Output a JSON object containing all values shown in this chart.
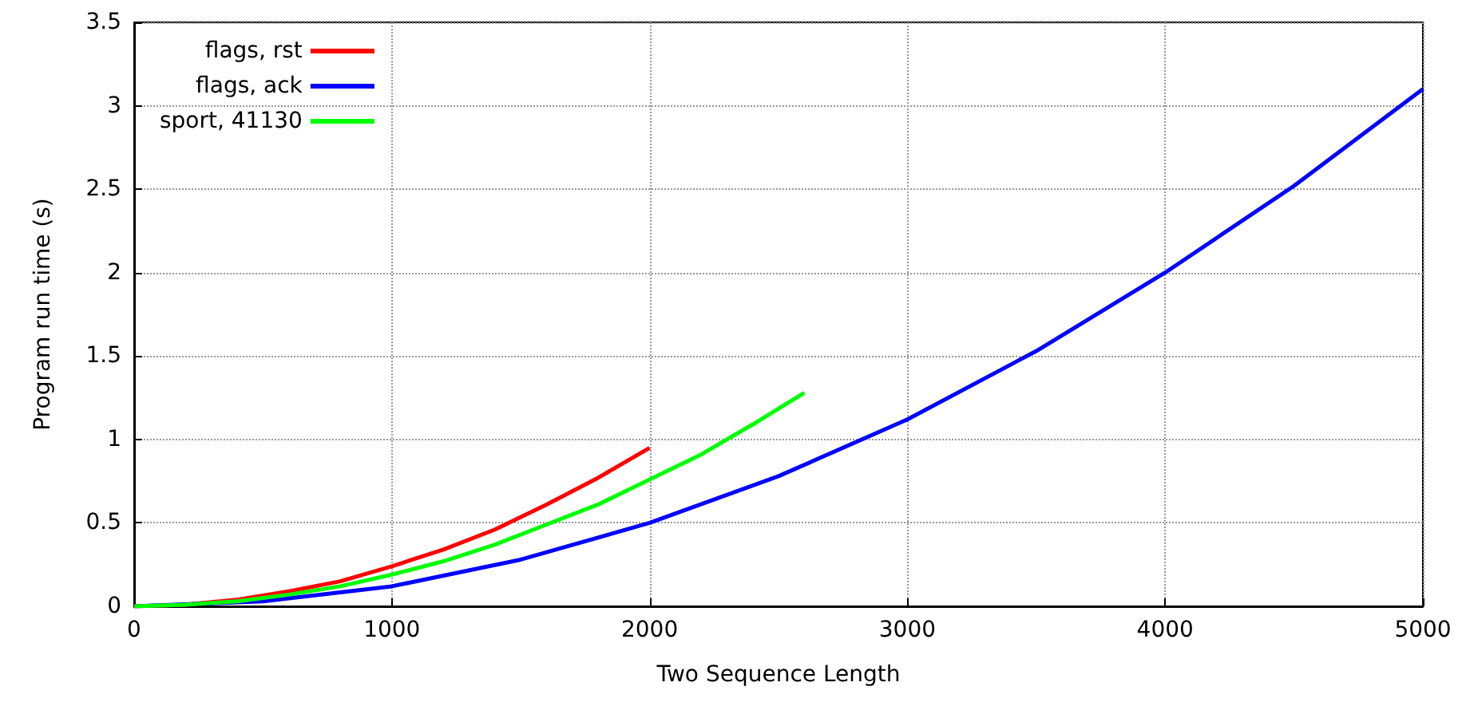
{
  "chart_data": {
    "type": "line",
    "xlabel": "Two Sequence Length",
    "ylabel": "Program run time (s)",
    "xlim": [
      0,
      5000
    ],
    "xticks": [
      0,
      1000,
      2000,
      3000,
      4000,
      5000
    ],
    "ylim": [
      0,
      3.5
    ],
    "yticks": [
      0,
      0.5,
      1,
      1.5,
      2,
      2.5,
      3,
      3.5
    ],
    "grid": true,
    "legend": "top left",
    "marker": "none",
    "line_style": "solid",
    "series": [
      {
        "name": "flags, rst",
        "color": "#ff0000",
        "x": [
          0,
          200,
          400,
          600,
          800,
          1000,
          1200,
          1400,
          1600,
          1800,
          2000
        ],
        "values": [
          0,
          0.01,
          0.04,
          0.09,
          0.15,
          0.24,
          0.34,
          0.46,
          0.61,
          0.77,
          0.95
        ]
      },
      {
        "name": "flags, ack",
        "color": "#0000ff",
        "x": [
          0,
          500,
          1000,
          1500,
          2000,
          2500,
          3000,
          3500,
          4000,
          4500,
          5000
        ],
        "values": [
          0,
          0.03,
          0.12,
          0.28,
          0.5,
          0.78,
          1.12,
          1.53,
          2.0,
          2.52,
          3.1
        ]
      },
      {
        "name": "sport, 41130",
        "color": "#00ff00",
        "x": [
          0,
          200,
          400,
          600,
          800,
          1000,
          1200,
          1400,
          1600,
          1800,
          2000,
          2200,
          2400,
          2600
        ],
        "values": [
          0,
          0.01,
          0.03,
          0.07,
          0.12,
          0.19,
          0.27,
          0.37,
          0.49,
          0.61,
          0.76,
          0.91,
          1.09,
          1.28
        ]
      }
    ]
  }
}
